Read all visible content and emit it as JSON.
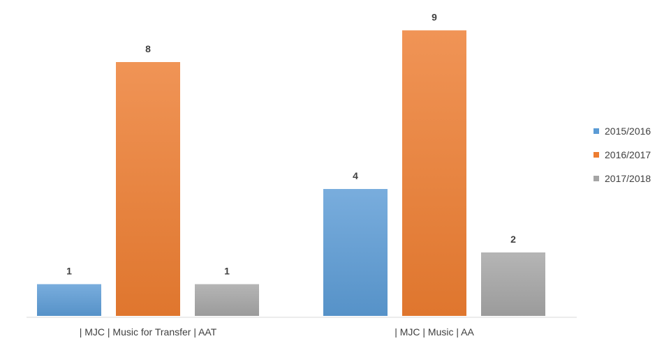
{
  "chart_data": {
    "type": "bar",
    "categories": [
      "| MJC | Music for Transfer | AAT",
      "| MJC | Music | AA"
    ],
    "series": [
      {
        "name": "2015/2016",
        "values": [
          1,
          4
        ],
        "color": "#5B9BD5"
      },
      {
        "name": "2016/2017",
        "values": [
          8,
          9
        ],
        "color": "#ED7D31"
      },
      {
        "name": "2017/2018",
        "values": [
          1,
          2
        ],
        "color": "#A5A5A5"
      }
    ],
    "ylim": [
      0,
      9
    ],
    "grid": false,
    "legend_position": "right",
    "data_labels": true
  }
}
